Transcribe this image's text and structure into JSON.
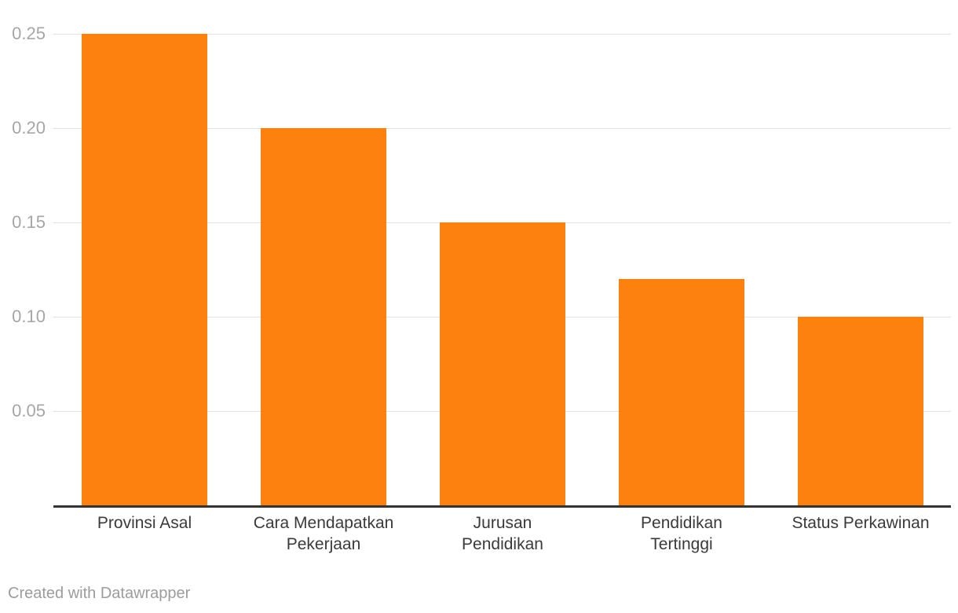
{
  "chart_data": {
    "type": "bar",
    "title": "",
    "xlabel": "",
    "ylabel": "",
    "categories": [
      "Provinsi Asal",
      "Cara Mendapatkan Pekerjaan",
      "Jurusan Pendidikan",
      "Pendidikan Tertinggi",
      "Status Perkawinan"
    ],
    "category_display_lines": [
      [
        "Provinsi Asal"
      ],
      [
        "Cara Mendapatkan",
        "Pekerjaan"
      ],
      [
        "Jurusan",
        "Pendidikan"
      ],
      [
        "Pendidikan",
        "Tertinggi"
      ],
      [
        "Status Perkawinan"
      ]
    ],
    "values": [
      0.25,
      0.2,
      0.15,
      0.12,
      0.1
    ],
    "ylim": [
      0,
      0.26
    ],
    "yticks": [
      0.05,
      0.1,
      0.15,
      0.2,
      0.25
    ],
    "ytick_labels": [
      "0.05",
      "0.10",
      "0.15",
      "0.20",
      "0.25"
    ],
    "grid": "horizontal",
    "legend_position": "none",
    "bar_color": "#fd810e"
  },
  "colors": {
    "background": "#ffffff",
    "bar": "#fd810e",
    "gridline": "#e0e0e0",
    "axis_line": "#333333",
    "tick_label": "#a6a6a6",
    "category_label": "#3a3a3a",
    "footer_text": "#9c9c9c"
  },
  "footer": {
    "attribution": "Created with Datawrapper"
  }
}
